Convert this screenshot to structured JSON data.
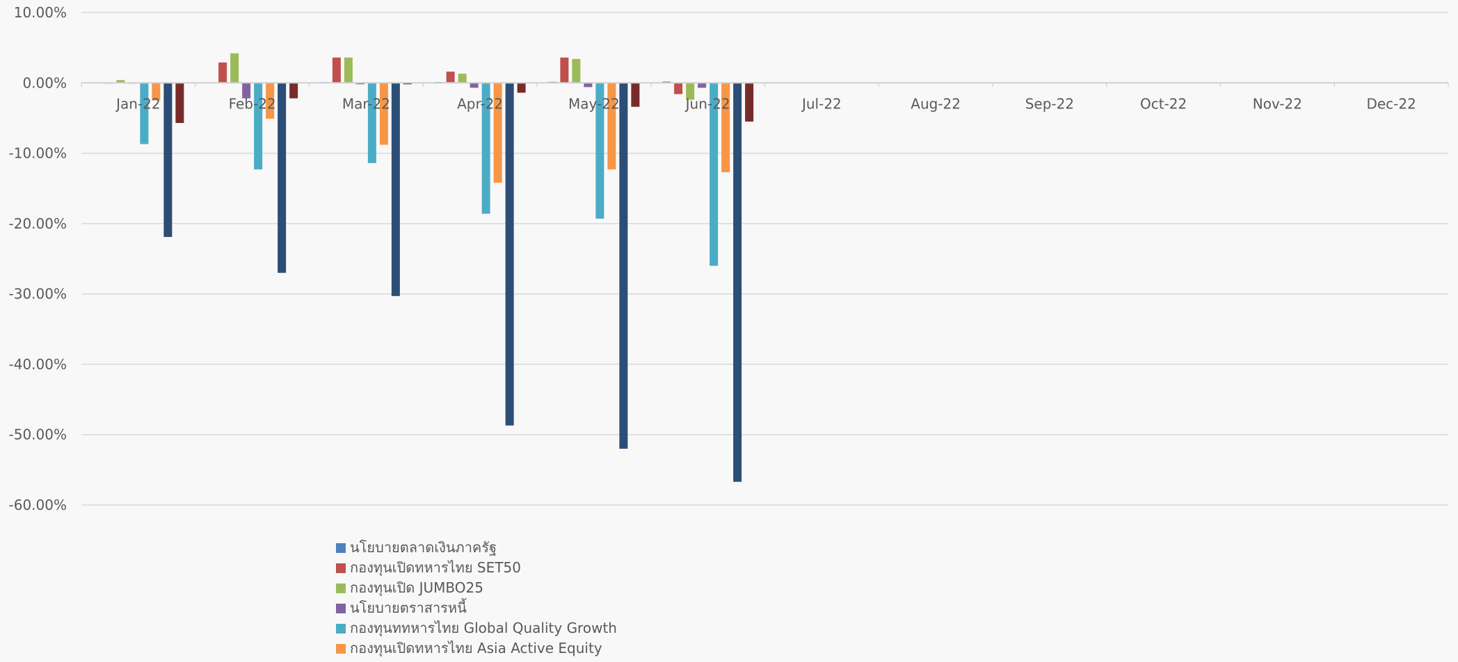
{
  "chart_data": {
    "type": "bar",
    "title": "",
    "xlabel": "",
    "ylabel": "",
    "ylim": [
      -60,
      10
    ],
    "y_ticks": [
      10,
      0,
      -10,
      -20,
      -30,
      -40,
      -50,
      -60
    ],
    "y_tick_labels": [
      "10.00%",
      "0.00%",
      "-10.00%",
      "-20.00%",
      "-30.00%",
      "-40.00%",
      "-50.00%",
      "-60.00%"
    ],
    "grid": true,
    "legend_position": "bottom-left",
    "categories": [
      "Jan-22",
      "Feb-22",
      "Mar-22",
      "Apr-22",
      "May-22",
      "Jun-22",
      "Jul-22",
      "Aug-22",
      "Sep-22",
      "Oct-22",
      "Nov-22",
      "Dec-22"
    ],
    "series": [
      {
        "name": "นโยบายตลาดเงินภาครัฐ",
        "color": "#4f81bd",
        "values": [
          0.05,
          0.08,
          0.1,
          0.12,
          0.15,
          0.18,
          null,
          null,
          null,
          null,
          null,
          null
        ]
      },
      {
        "name": "กองทุนเปิดทหารไทย SET50",
        "color": "#c0504d",
        "values": [
          -0.1,
          2.9,
          3.6,
          1.6,
          3.6,
          -1.6,
          null,
          null,
          null,
          null,
          null,
          null
        ]
      },
      {
        "name": "กองทุนเปิด JUMBO25",
        "color": "#9bbb59",
        "values": [
          0.4,
          4.2,
          3.6,
          1.3,
          3.4,
          -2.4,
          null,
          null,
          null,
          null,
          null,
          null
        ]
      },
      {
        "name": "นโยบายตราสารหนี้",
        "color": "#8064a2",
        "values": [
          -0.1,
          -2.2,
          -0.2,
          -0.7,
          -0.6,
          -0.7,
          null,
          null,
          null,
          null,
          null,
          null
        ]
      },
      {
        "name": "กองทุนททหารไทย Global Quality Growth",
        "color": "#4bacc6",
        "values": [
          -8.7,
          -12.3,
          -11.4,
          -18.6,
          -19.3,
          -26.0,
          null,
          null,
          null,
          null,
          null,
          null
        ]
      },
      {
        "name": "กองทุนเปิดทหารไทย Asia Active Equity",
        "color": "#f79646",
        "values": [
          -2.5,
          -5.1,
          -8.8,
          -14.2,
          -12.3,
          -12.7,
          null,
          null,
          null,
          null,
          null,
          null
        ]
      },
      {
        "name": "",
        "color": "#2c4d75",
        "values": [
          -21.9,
          -27.0,
          -30.3,
          -48.7,
          -52.0,
          -56.7,
          null,
          null,
          null,
          null,
          null,
          null
        ]
      },
      {
        "name": "",
        "color": "#772c2a",
        "values": [
          -5.7,
          -2.2,
          -0.2,
          -1.4,
          -3.4,
          -5.5,
          null,
          null,
          null,
          null,
          null,
          null
        ]
      }
    ]
  }
}
